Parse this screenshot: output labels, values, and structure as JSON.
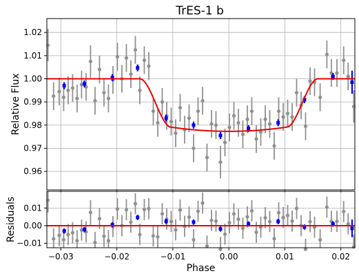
{
  "chart_data": [
    {
      "panel": "main",
      "type": "scatter",
      "title": "TrES-1 b",
      "xlabel": "",
      "ylabel": "Relative Flux",
      "xlim": [
        -0.0325,
        0.0225
      ],
      "ylim": [
        0.952,
        1.026
      ],
      "yticks": [
        0.96,
        0.97,
        0.98,
        0.99,
        1.0,
        1.01,
        1.02
      ],
      "ytick_labels": [
        "0.96",
        "0.97",
        "0.98",
        "0.99",
        "1.00",
        "1.01",
        "1.02"
      ],
      "grid": true,
      "series": [
        {
          "kind": "raw",
          "color": "#909090",
          "points": [
            [
              -0.0323,
              1.0145,
              0.007
            ],
            [
              -0.0313,
              0.9925,
              0.006
            ],
            [
              -0.0303,
              0.9945,
              0.006
            ],
            [
              -0.0295,
              0.992,
              0.006
            ],
            [
              -0.0287,
              0.995,
              0.006
            ],
            [
              -0.0279,
              0.996,
              0.006
            ],
            [
              -0.0271,
              0.9915,
              0.006
            ],
            [
              -0.0263,
              0.9975,
              0.006
            ],
            [
              -0.0255,
              0.9965,
              0.006
            ],
            [
              -0.0247,
              1.0075,
              0.007
            ],
            [
              -0.0239,
              0.9905,
              0.006
            ],
            [
              -0.0231,
              1.004,
              0.006
            ],
            [
              -0.0223,
              0.994,
              0.006
            ],
            [
              -0.0215,
              0.9915,
              0.006
            ],
            [
              -0.0207,
              0.9995,
              0.006
            ],
            [
              -0.0199,
              1.0095,
              0.006
            ],
            [
              -0.0191,
              1.0,
              0.006
            ],
            [
              -0.0183,
              1.009,
              0.006
            ],
            [
              -0.0175,
              1.002,
              0.006
            ],
            [
              -0.0167,
              1.0125,
              0.006
            ],
            [
              -0.0159,
              0.995,
              0.006
            ],
            [
              -0.0151,
              1.008,
              0.006
            ],
            [
              -0.0143,
              1.0055,
              0.006
            ],
            [
              -0.0135,
              0.986,
              0.006
            ],
            [
              -0.0127,
              0.981,
              0.006
            ],
            [
              -0.0119,
              0.99,
              0.006
            ],
            [
              -0.0111,
              0.984,
              0.006
            ],
            [
              -0.0103,
              0.9815,
              0.006
            ],
            [
              -0.0095,
              0.9765,
              0.006
            ],
            [
              -0.0087,
              0.9875,
              0.006
            ],
            [
              -0.0079,
              0.978,
              0.006
            ],
            [
              -0.0071,
              0.983,
              0.006
            ],
            [
              -0.0063,
              0.97,
              0.006
            ],
            [
              -0.0055,
              0.986,
              0.006
            ],
            [
              -0.0047,
              0.9905,
              0.006
            ],
            [
              -0.0039,
              0.966,
              0.006
            ],
            [
              -0.0031,
              0.9805,
              0.006
            ],
            [
              -0.0023,
              0.98,
              0.006
            ],
            [
              -0.0015,
              0.964,
              0.007
            ],
            [
              -0.0007,
              0.9725,
              0.006
            ],
            [
              0.0001,
              0.979,
              0.006
            ],
            [
              0.0009,
              0.984,
              0.006
            ],
            [
              0.0017,
              0.981,
              0.006
            ],
            [
              0.0025,
              0.976,
              0.006
            ],
            [
              0.0033,
              0.9825,
              0.006
            ],
            [
              0.0041,
              0.986,
              0.006
            ],
            [
              0.0049,
              0.974,
              0.006
            ],
            [
              0.0057,
              0.977,
              0.006
            ],
            [
              0.0065,
              0.9825,
              0.006
            ],
            [
              0.0073,
              0.9805,
              0.006
            ],
            [
              0.0081,
              0.971,
              0.006
            ],
            [
              0.0089,
              0.986,
              0.006
            ],
            [
              0.0097,
              0.9835,
              0.006
            ],
            [
              0.0105,
              0.985,
              0.006
            ],
            [
              0.0113,
              0.9835,
              0.006
            ],
            [
              0.0121,
              0.994,
              0.006
            ],
            [
              0.0129,
              0.9885,
              0.006
            ],
            [
              0.0137,
              0.9795,
              0.006
            ],
            [
              0.0145,
              0.999,
              0.006
            ],
            [
              0.0153,
              0.9985,
              0.006
            ],
            [
              0.0163,
              0.992,
              0.006
            ],
            [
              0.0175,
              1.0105,
              0.006
            ],
            [
              0.0183,
              1.0025,
              0.006
            ],
            [
              0.0193,
              1.0025,
              0.006
            ],
            [
              0.0205,
              1.008,
              0.006
            ],
            [
              0.0213,
              1.001,
              0.006
            ],
            [
              0.0223,
              0.988,
              0.007
            ]
          ]
        },
        {
          "kind": "binned",
          "color": "#0000ff",
          "points": [
            [
              -0.0294,
              0.997,
              0.0015
            ],
            [
              -0.0258,
              0.9978,
              0.0015
            ],
            [
              -0.0208,
              1.0005,
              0.0015
            ],
            [
              -0.0163,
              1.0047,
              0.0015
            ],
            [
              -0.0112,
              0.983,
              0.0015
            ],
            [
              -0.0063,
              0.98,
              0.0015
            ],
            [
              -0.0015,
              0.9755,
              0.0015
            ],
            [
              0.0035,
              0.9785,
              0.0015
            ],
            [
              0.0088,
              0.981,
              0.0015
            ],
            [
              0.0135,
              0.991,
              0.0015
            ],
            [
              0.0186,
              1.001,
              0.0015
            ],
            [
              0.022,
              0.9985,
              0.005
            ]
          ]
        },
        {
          "kind": "model",
          "color": "#ee0000"
        }
      ],
      "model": {
        "baseline": 1.0,
        "min": 0.9773,
        "t1": -0.0159,
        "t2": -0.0103,
        "t3": 0.0103,
        "t4": 0.0159
      }
    },
    {
      "panel": "residuals",
      "type": "scatter",
      "xlabel": "Phase",
      "ylabel": "Residuals",
      "xlim": [
        -0.0325,
        0.0225
      ],
      "ylim": [
        -0.0125,
        0.0195
      ],
      "xticks": [
        -0.03,
        -0.02,
        -0.01,
        0.0,
        0.01,
        0.02
      ],
      "xtick_labels": [
        "−0.03",
        "−0.02",
        "−0.01",
        "0.00",
        "0.01",
        "0.02"
      ],
      "yticks": [
        -0.01,
        0.0,
        0.01
      ],
      "ytick_labels": [
        "−0.01",
        "0.00",
        "0.01"
      ],
      "grid": true,
      "zero_line_color": "#ee0000"
    }
  ]
}
